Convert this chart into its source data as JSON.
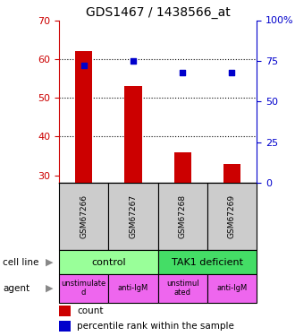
{
  "title": "GDS1467 / 1438566_at",
  "samples": [
    "GSM67266",
    "GSM67267",
    "GSM67268",
    "GSM67269"
  ],
  "counts": [
    62,
    53,
    36,
    33
  ],
  "percentiles": [
    72,
    75,
    68,
    68
  ],
  "ylim_left": [
    28,
    70
  ],
  "ylim_right": [
    0,
    100
  ],
  "yticks_left": [
    30,
    40,
    50,
    60,
    70
  ],
  "yticks_right": [
    0,
    25,
    50,
    75,
    100
  ],
  "bar_color": "#cc0000",
  "square_color": "#0000cc",
  "count_base": 28,
  "cell_line_labels": [
    "control",
    "TAK1 deficient"
  ],
  "cell_line_spans": [
    [
      0,
      2
    ],
    [
      2,
      4
    ]
  ],
  "cell_line_colors": [
    "#99ff99",
    "#44dd66"
  ],
  "agent_labels": [
    "unstimulate\nd",
    "anti-IgM",
    "unstimul\nated",
    "anti-IgM"
  ],
  "agent_color": "#ee66ee",
  "title_fontsize": 10,
  "axis_left_color": "#cc0000",
  "axis_right_color": "#0000cc",
  "grid_yticks": [
    40,
    50,
    60
  ],
  "sample_bg": "#cccccc"
}
